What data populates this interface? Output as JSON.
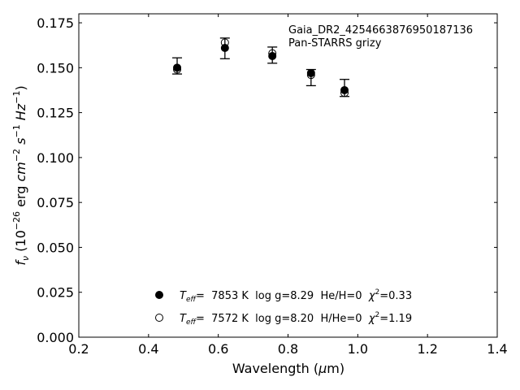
{
  "chart_data": {
    "type": "scatter",
    "annotations": [
      "Gaia_DR2_4254663876950187136",
      "Pan-STARRS grizy"
    ],
    "xlabel": "Wavelength (μm)",
    "ylabel": "f_ν (10^-26 erg cm^-2 s^-1 Hz^-1)",
    "xlim": [
      0.2,
      1.4
    ],
    "ylim": [
      0.0,
      0.18
    ],
    "xticks": [
      "0.2",
      "0.4",
      "0.6",
      "0.8",
      "1.0",
      "1.2",
      "1.4"
    ],
    "yticks": [
      "0.000",
      "0.025",
      "0.050",
      "0.075",
      "0.100",
      "0.125",
      "0.150",
      "0.175"
    ],
    "grid": false,
    "legend_position": "lower-center",
    "observed": {
      "x": [
        0.482,
        0.619,
        0.755,
        0.866,
        0.962
      ],
      "y": [
        0.151,
        0.1605,
        0.157,
        0.1445,
        0.138
      ],
      "ylow": [
        0.1465,
        0.155,
        0.1525,
        0.14,
        0.134
      ],
      "yhigh": [
        0.1555,
        0.1665,
        0.1615,
        0.149,
        0.1435
      ]
    },
    "series": [
      {
        "name": "T_eff= 7853 K  log g=8.29  He/H=0  χ²=0.33",
        "legend_parts": {
          "t": "T",
          "sub": "eff",
          "main": "=  7853 K  log g=8.29  He/H=0  ",
          "chi": "χ",
          "sup": "2",
          "tail": "=0.33"
        },
        "marker": "filled",
        "x": [
          0.482,
          0.619,
          0.755,
          0.866,
          0.962
        ],
        "y": [
          0.15,
          0.161,
          0.1565,
          0.147,
          0.1375
        ]
      },
      {
        "name": "T_eff= 7572 K  log g=8.20  H/He=0  χ²=1.19",
        "legend_parts": {
          "t": "T",
          "sub": "eff",
          "main": "=  7572 K  log g=8.20  H/He=0  ",
          "chi": "χ",
          "sup": "2",
          "tail": "=1.19"
        },
        "marker": "open",
        "x": [
          0.482,
          0.619,
          0.755,
          0.866,
          0.962
        ],
        "y": [
          0.149,
          0.164,
          0.158,
          0.146,
          0.136
        ]
      }
    ]
  }
}
